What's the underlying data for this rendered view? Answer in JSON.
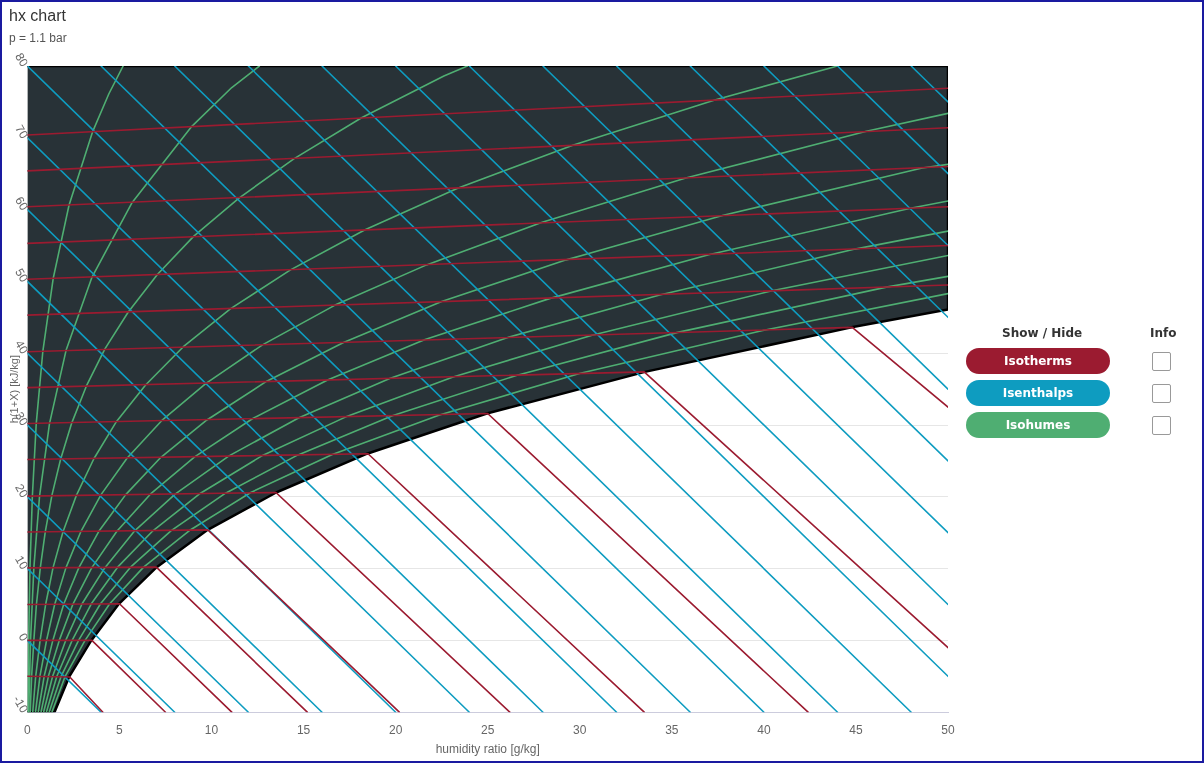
{
  "chart_data": {
    "type": "line",
    "title": "hx chart",
    "subtitle": "p = 1.1 bar",
    "xlabel": "humidity ratio [g/kg]",
    "ylabel": "h(1+X) [kJ/kg]",
    "xlim": [
      0,
      50
    ],
    "xticks": [
      0,
      5,
      10,
      15,
      20,
      25,
      30,
      35,
      40,
      45,
      50
    ],
    "ylim": [
      -10,
      80
    ],
    "yticks": [
      -10,
      0,
      10,
      20,
      30,
      40,
      50,
      60,
      70,
      80
    ],
    "grid": "y",
    "legend": "right",
    "legend_title": "Show / Hide",
    "annotations": [
      "Info"
    ],
    "marker": "none",
    "line_style": "solid",
    "series": [
      {
        "type": "area",
        "color": "#283237",
        "x": [
          0,
          1.47,
          2.28,
          3.47,
          4.97,
          7.02,
          9.79,
          13.51,
          18.45,
          24.95,
          33.54,
          44.76,
          50,
          50,
          0
        ],
        "values": [
          -10,
          -10,
          -5,
          0,
          5.1,
          10.2,
          15.4,
          20.6,
          26,
          31.6,
          37.4,
          43.6,
          46.1,
          80,
          80
        ]
      },
      {
        "name": "Isotherms",
        "color": "#9b1b30",
        "x": [
          0,
          2.3,
          4.1
        ],
        "values": [
          -5,
          -5.1,
          -10
        ]
      },
      {
        "color": "#9b1b30",
        "x": [
          0,
          3.5,
          7.5
        ],
        "values": [
          0,
          0,
          -10
        ]
      },
      {
        "color": "#9b1b30",
        "x": [
          0,
          5,
          11.1
        ],
        "values": [
          5,
          5.1,
          -10
        ]
      },
      {
        "color": "#9b1b30",
        "x": [
          0,
          7,
          15.2
        ],
        "values": [
          10.1,
          10.2,
          -10
        ]
      },
      {
        "color": "#9b1b30",
        "x": [
          0,
          9.8,
          20.2
        ],
        "values": [
          15.1,
          15.4,
          -10
        ]
      },
      {
        "color": "#9b1b30",
        "x": [
          0,
          13.5,
          26.2
        ],
        "values": [
          20.1,
          20.6,
          -10
        ]
      },
      {
        "color": "#9b1b30",
        "x": [
          0,
          18.5,
          33.5
        ],
        "values": [
          25.2,
          26,
          -10
        ]
      },
      {
        "color": "#9b1b30",
        "x": [
          0,
          25,
          42.4
        ],
        "values": [
          30.2,
          31.6,
          -10
        ]
      },
      {
        "color": "#9b1b30",
        "x": [
          0,
          33.5,
          50
        ],
        "values": [
          35.2,
          37.4,
          -1
        ]
      },
      {
        "color": "#9b1b30",
        "x": [
          0,
          44.8,
          50
        ],
        "values": [
          40.2,
          43.6,
          32.5
        ]
      },
      {
        "color": "#9b1b30",
        "x": [
          0,
          50
        ],
        "values": [
          45.3,
          49.5
        ]
      },
      {
        "color": "#9b1b30",
        "x": [
          0,
          50
        ],
        "values": [
          50.3,
          55
        ]
      },
      {
        "color": "#9b1b30",
        "x": [
          0,
          50
        ],
        "values": [
          55.3,
          60.4
        ]
      },
      {
        "color": "#9b1b30",
        "x": [
          0,
          50
        ],
        "values": [
          60.4,
          66
        ]
      },
      {
        "color": "#9b1b30",
        "x": [
          0,
          50
        ],
        "values": [
          65.4,
          71.4
        ]
      },
      {
        "color": "#9b1b30",
        "x": [
          0,
          50
        ],
        "values": [
          70.4,
          76.9
        ]
      },
      {
        "name": "Isenthalps",
        "color": "#0e9cc0",
        "x": [
          0,
          4
        ],
        "values": [
          0,
          -10
        ]
      },
      {
        "color": "#0e9cc0",
        "x": [
          0,
          8
        ],
        "values": [
          10,
          -10
        ]
      },
      {
        "color": "#0e9cc0",
        "x": [
          0,
          12
        ],
        "values": [
          20,
          -10
        ]
      },
      {
        "color": "#0e9cc0",
        "x": [
          0,
          16
        ],
        "values": [
          30,
          -10
        ]
      },
      {
        "color": "#0e9cc0",
        "x": [
          0,
          20
        ],
        "values": [
          40,
          -10
        ]
      },
      {
        "color": "#0e9cc0",
        "x": [
          0,
          24
        ],
        "values": [
          50,
          -10
        ]
      },
      {
        "color": "#0e9cc0",
        "x": [
          0,
          28
        ],
        "values": [
          60,
          -10
        ]
      },
      {
        "color": "#0e9cc0",
        "x": [
          0,
          32
        ],
        "values": [
          70,
          -10
        ]
      },
      {
        "color": "#0e9cc0",
        "x": [
          0,
          36
        ],
        "values": [
          80,
          -10
        ]
      },
      {
        "color": "#0e9cc0",
        "x": [
          4,
          40
        ],
        "values": [
          80,
          -10
        ]
      },
      {
        "color": "#0e9cc0",
        "x": [
          8,
          44
        ],
        "values": [
          80,
          -10
        ]
      },
      {
        "color": "#0e9cc0",
        "x": [
          12,
          48
        ],
        "values": [
          80,
          -10
        ]
      },
      {
        "color": "#0e9cc0",
        "x": [
          16,
          50
        ],
        "values": [
          80,
          -5
        ]
      },
      {
        "color": "#0e9cc0",
        "x": [
          20,
          50
        ],
        "values": [
          80,
          5
        ]
      },
      {
        "color": "#0e9cc0",
        "x": [
          24,
          50
        ],
        "values": [
          80,
          15
        ]
      },
      {
        "color": "#0e9cc0",
        "x": [
          28,
          50
        ],
        "values": [
          80,
          25
        ]
      },
      {
        "color": "#0e9cc0",
        "x": [
          32,
          50
        ],
        "values": [
          80,
          35
        ]
      },
      {
        "color": "#0e9cc0",
        "x": [
          36,
          50
        ],
        "values": [
          80,
          45
        ]
      },
      {
        "color": "#0e9cc0",
        "x": [
          40,
          45,
          50
        ],
        "values": [
          80,
          67.5,
          55
        ]
      },
      {
        "color": "#0e9cc0",
        "x": [
          44,
          47,
          50
        ],
        "values": [
          80,
          72.5,
          65
        ]
      },
      {
        "color": "#0e9cc0",
        "x": [
          48,
          49,
          50
        ],
        "values": [
          80,
          77.5,
          75
        ]
      },
      {
        "name": "Isohumes",
        "color": "#4fae72",
        "x": [
          0.03,
          0.07,
          0.14,
          0.27,
          0.48,
          0.84,
          1.4,
          2.26,
          3.55,
          4.42,
          5.2
        ],
        "values": [
          -10,
          0,
          10.1,
          20.1,
          30.2,
          40.3,
          50.4,
          60.6,
          70.9,
          76.1,
          80
        ]
      },
      {
        "color": "#4fae72",
        "x": [
          0.07,
          0.17,
          0.35,
          0.66,
          1.2,
          2.1,
          3.51,
          5.69,
          8.93,
          11.1,
          12.6
        ],
        "values": [
          -10,
          0,
          10.1,
          20.1,
          30.2,
          40.4,
          50.6,
          61,
          71.6,
          77,
          80
        ]
      },
      {
        "color": "#4fae72",
        "x": [
          0.15,
          0.23,
          0.35,
          0.49,
          0.7,
          0.97,
          1.33,
          1.8,
          2.41,
          3.2,
          4.21,
          5.47,
          7.07,
          9.04,
          11.49,
          14.49,
          18.15,
          22.62,
          23.9
        ],
        "values": [
          -10,
          -5,
          0,
          5,
          10.1,
          15.1,
          20.2,
          25.2,
          30.3,
          35.4,
          40.6,
          45.7,
          51,
          56.3,
          61.6,
          67.1,
          72.8,
          78.6,
          80
        ]
      },
      {
        "color": "#4fae72",
        "x": [
          0.29,
          0.45,
          0.69,
          0.99,
          1.39,
          1.93,
          2.66,
          3.61,
          4.84,
          6.43,
          8.47,
          11.04,
          14.29,
          18.34,
          23.4,
          29.66,
          37.38,
          44
        ],
        "values": [
          -10,
          -5,
          0,
          5,
          10.1,
          15.1,
          20.2,
          25.3,
          30.5,
          35.6,
          40.9,
          46.2,
          51.6,
          57.2,
          63,
          69,
          75.3,
          80
        ]
      },
      {
        "color": "#4fae72",
        "x": [
          0.44,
          0.68,
          1.04,
          1.48,
          2.09,
          2.91,
          4,
          5.42,
          7.29,
          9.7,
          12.79,
          16.71,
          21.68,
          27.92,
          35.76,
          45.57,
          50
        ],
        "values": [
          -10,
          -5,
          0,
          5,
          10.1,
          15.2,
          20.3,
          25.4,
          30.6,
          35.8,
          41.2,
          46.7,
          52.3,
          58.2,
          64.4,
          70.9,
          73.4
        ]
      },
      {
        "color": "#4fae72",
        "x": [
          0.59,
          0.91,
          1.38,
          1.98,
          2.79,
          3.88,
          5.34,
          7.25,
          9.75,
          13,
          17.17,
          22.5,
          29.27,
          37.8,
          48.6,
          50
        ],
        "values": [
          -10,
          -5,
          0,
          5.1,
          10.1,
          15.2,
          20.3,
          25.5,
          30.7,
          36.1,
          41.5,
          47.2,
          53,
          59.2,
          65.8,
          66.3
        ]
      },
      {
        "color": "#4fae72",
        "x": [
          0.74,
          1.14,
          1.73,
          2.48,
          3.49,
          4.86,
          6.69,
          9.1,
          12.24,
          16.33,
          21.6,
          28.35,
          37,
          47.96,
          50
        ],
        "values": [
          -10,
          -5,
          0,
          5.1,
          10.1,
          15.2,
          20.4,
          25.6,
          30.9,
          36.3,
          41.9,
          47.6,
          53.7,
          60.2,
          61.2
        ]
      },
      {
        "color": "#4fae72",
        "x": [
          0.88,
          1.37,
          2.08,
          2.97,
          4.2,
          5.84,
          8.04,
          10.95,
          14.75,
          19.71,
          26.09,
          34.34,
          44.95,
          50
        ],
        "values": [
          -10,
          -5,
          0,
          5.1,
          10.1,
          15.3,
          20.4,
          25.7,
          31,
          36.5,
          42.2,
          48.1,
          54.5,
          57
        ]
      },
      {
        "color": "#4fae72",
        "x": [
          1.03,
          1.6,
          2.43,
          3.47,
          4.9,
          6.83,
          9.4,
          12.8,
          17.27,
          23.12,
          30.67,
          40.44,
          50
        ],
        "values": [
          -10,
          -5,
          0,
          5.1,
          10.2,
          15.3,
          20.5,
          25.8,
          31.1,
          36.7,
          42.5,
          48.7,
          53.6
        ]
      },
      {
        "color": "#4fae72",
        "x": [
          1.18,
          1.83,
          2.78,
          3.97,
          5.6,
          7.81,
          10.76,
          14.67,
          19.82,
          26.55,
          35.32,
          46.65,
          50
        ],
        "values": [
          -10,
          -5,
          0,
          5.1,
          10.2,
          15.3,
          20.5,
          25.8,
          31.3,
          36.9,
          42.9,
          49.2,
          50.7
        ]
      },
      {
        "color": "#4fae72",
        "x": [
          1.33,
          2.05,
          3.13,
          4.47,
          6.31,
          8.8,
          12.13,
          16.56,
          22.38,
          30.03,
          40,
          50
        ],
        "values": [
          -10,
          -5,
          0,
          5.1,
          10.2,
          15.3,
          20.6,
          25.9,
          31.4,
          37.2,
          43.2,
          48.3
        ]
      }
    ]
  }
}
